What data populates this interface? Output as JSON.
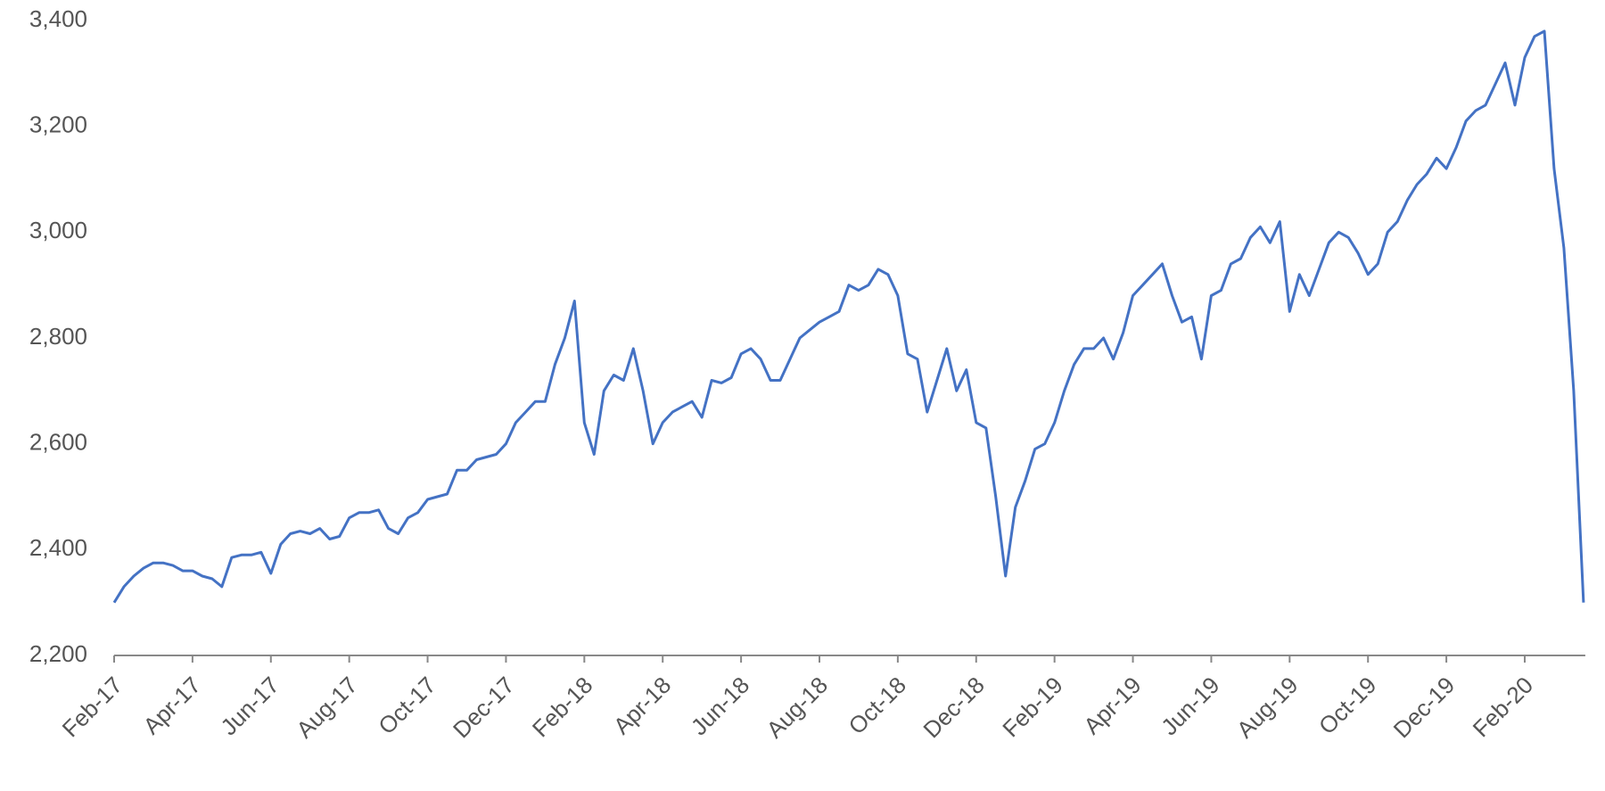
{
  "chart_data": {
    "type": "line",
    "color": "#4472c4",
    "categories": [
      "Feb-17",
      null,
      null,
      null,
      null,
      null,
      null,
      null,
      "Apr-17",
      null,
      null,
      null,
      null,
      null,
      null,
      null,
      "Jun-17",
      null,
      null,
      null,
      null,
      null,
      null,
      null,
      "Aug-17",
      null,
      null,
      null,
      null,
      null,
      null,
      null,
      "Oct-17",
      null,
      null,
      null,
      null,
      null,
      null,
      null,
      "Dec-17",
      null,
      null,
      null,
      null,
      null,
      null,
      null,
      "Feb-18",
      null,
      null,
      null,
      null,
      null,
      null,
      null,
      "Apr-18",
      null,
      null,
      null,
      null,
      null,
      null,
      null,
      "Jun-18",
      null,
      null,
      null,
      null,
      null,
      null,
      null,
      "Aug-18",
      null,
      null,
      null,
      null,
      null,
      null,
      null,
      "Oct-18",
      null,
      null,
      null,
      null,
      null,
      null,
      null,
      "Dec-18",
      null,
      null,
      null,
      null,
      null,
      null,
      null,
      "Feb-19",
      null,
      null,
      null,
      null,
      null,
      null,
      null,
      "Apr-19",
      null,
      null,
      null,
      null,
      null,
      null,
      null,
      "Jun-19",
      null,
      null,
      null,
      null,
      null,
      null,
      null,
      "Aug-19",
      null,
      null,
      null,
      null,
      null,
      null,
      null,
      "Oct-19",
      null,
      null,
      null,
      null,
      null,
      null,
      null,
      "Dec-19",
      null,
      null,
      null,
      null,
      null,
      null,
      null,
      "Feb-20",
      null,
      null,
      null,
      null,
      null,
      null
    ],
    "values": [
      2300,
      2330,
      2350,
      2365,
      2375,
      2375,
      2370,
      2360,
      2360,
      2350,
      2345,
      2330,
      2385,
      2390,
      2390,
      2395,
      2355,
      2410,
      2430,
      2435,
      2430,
      2440,
      2420,
      2425,
      2460,
      2470,
      2470,
      2475,
      2440,
      2430,
      2460,
      2470,
      2495,
      2500,
      2505,
      2550,
      2550,
      2570,
      2575,
      2580,
      2600,
      2640,
      2660,
      2680,
      2680,
      2750,
      2800,
      2870,
      2640,
      2580,
      2700,
      2730,
      2720,
      2780,
      2700,
      2600,
      2640,
      2660,
      2670,
      2680,
      2650,
      2720,
      2715,
      2725,
      2770,
      2780,
      2760,
      2720,
      2720,
      2760,
      2800,
      2815,
      2830,
      2840,
      2850,
      2900,
      2890,
      2900,
      2930,
      2920,
      2880,
      2770,
      2760,
      2660,
      2720,
      2780,
      2700,
      2740,
      2640,
      2630,
      2500,
      2350,
      2480,
      2530,
      2590,
      2600,
      2640,
      2700,
      2750,
      2780,
      2780,
      2800,
      2760,
      2810,
      2880,
      2900,
      2920,
      2940,
      2880,
      2830,
      2840,
      2760,
      2880,
      2890,
      2940,
      2950,
      2990,
      3010,
      2980,
      3020,
      2850,
      2920,
      2880,
      2930,
      2980,
      3000,
      2990,
      2960,
      2920,
      2940,
      3000,
      3020,
      3060,
      3090,
      3110,
      3140,
      3120,
      3160,
      3210,
      3230,
      3240,
      3280,
      3320,
      3240,
      3330,
      3370,
      3380,
      3120,
      2970,
      2700,
      2300
    ],
    "ylim": [
      2200,
      3400
    ],
    "yticks": [
      {
        "value": 2200,
        "label": "2,200"
      },
      {
        "value": 2400,
        "label": "2,400"
      },
      {
        "value": 2600,
        "label": "2,600"
      },
      {
        "value": 2800,
        "label": "2,800"
      },
      {
        "value": 3000,
        "label": "3,000"
      },
      {
        "value": 3200,
        "label": "3,200"
      },
      {
        "value": 3400,
        "label": "3,400"
      }
    ]
  }
}
